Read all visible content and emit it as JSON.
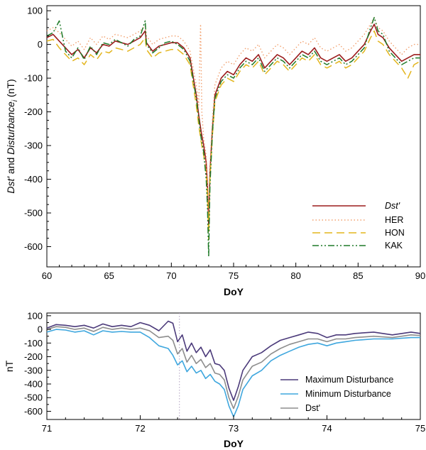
{
  "chart_data": [
    {
      "type": "line",
      "xlabel": "DoY",
      "ylabel": {
        "part1": "Dst'",
        "part2": " and ",
        "part3": "Disturbance",
        "part4": "i",
        "part5": " (nT)"
      },
      "xlim": [
        60,
        90
      ],
      "ylim": [
        -660,
        115
      ],
      "xticks": [
        "60",
        "65",
        "70",
        "75",
        "80",
        "85",
        "90"
      ],
      "yticks": [
        "100",
        "0",
        "-100",
        "-200",
        "-300",
        "-400",
        "-500",
        "-600"
      ],
      "legend_position": "bottom-right",
      "series": [
        {
          "name": "Dst'",
          "color": "#9b1c1c",
          "dash": "",
          "width": 1.6,
          "x": [
            60,
            60.5,
            61,
            61.5,
            62,
            62.5,
            63,
            63.5,
            64,
            64.5,
            65,
            65.5,
            66,
            66.5,
            67,
            67.5,
            67.9,
            68,
            68.5,
            69,
            69.5,
            70,
            70.5,
            71,
            71.5,
            72,
            72.2,
            72.4,
            72.6,
            72.8,
            72.9,
            73.0,
            73.1,
            73.3,
            73.5,
            74,
            74.5,
            75,
            75.5,
            76,
            76.5,
            77,
            77.5,
            78,
            78.5,
            79,
            79.5,
            80,
            80.5,
            81,
            81.5,
            82,
            82.5,
            83,
            83.5,
            84,
            84.5,
            85,
            85.5,
            86,
            86.3,
            86.6,
            87,
            87.5,
            88,
            88.5,
            89,
            89.5,
            90
          ],
          "y": [
            20,
            30,
            10,
            -10,
            -30,
            -15,
            -40,
            -10,
            -25,
            0,
            -5,
            10,
            5,
            0,
            10,
            20,
            40,
            5,
            -20,
            -5,
            0,
            5,
            5,
            -10,
            -40,
            -150,
            -210,
            -260,
            -300,
            -350,
            -420,
            -540,
            -380,
            -250,
            -150,
            -100,
            -80,
            -90,
            -60,
            -40,
            -50,
            -30,
            -70,
            -50,
            -30,
            -40,
            -60,
            -40,
            -20,
            -30,
            -10,
            -40,
            -50,
            -40,
            -30,
            -50,
            -40,
            -20,
            0,
            40,
            60,
            30,
            20,
            -10,
            -30,
            -50,
            -40,
            -30,
            -30
          ]
        },
        {
          "name": "HER",
          "color": "#f2a06e",
          "dash": "1.5,3",
          "width": 1.4,
          "x": [
            60,
            60.5,
            61,
            61.5,
            62,
            62.5,
            63,
            63.5,
            64,
            64.5,
            65,
            65.5,
            66,
            66.5,
            67,
            67.5,
            67.9,
            68,
            68.5,
            69,
            69.5,
            70,
            70.5,
            71,
            71.5,
            72,
            72.2,
            72.35,
            72.45,
            72.6,
            72.8,
            72.9,
            73.0,
            73.1,
            73.3,
            73.5,
            74,
            74.5,
            75,
            75.5,
            76,
            76.5,
            77,
            77.5,
            78,
            78.5,
            79,
            79.5,
            80,
            80.5,
            81,
            81.5,
            82,
            82.5,
            83,
            83.5,
            84,
            84.5,
            85,
            85.5,
            86,
            86.3,
            86.6,
            87,
            87.5,
            88,
            88.5,
            89,
            89.5,
            90
          ],
          "y": [
            40,
            50,
            35,
            15,
            -5,
            10,
            -15,
            20,
            0,
            25,
            15,
            30,
            25,
            20,
            30,
            40,
            55,
            25,
            0,
            15,
            20,
            25,
            25,
            10,
            -20,
            -120,
            -180,
            60,
            -200,
            -280,
            -330,
            -400,
            -520,
            -360,
            -220,
            -120,
            -70,
            -50,
            -60,
            -30,
            -10,
            -20,
            0,
            -40,
            -20,
            0,
            -10,
            -30,
            -10,
            10,
            0,
            20,
            -10,
            -20,
            -10,
            0,
            -20,
            -10,
            10,
            30,
            60,
            80,
            50,
            40,
            10,
            -10,
            -30,
            -10,
            0,
            0
          ]
        },
        {
          "name": "HON",
          "color": "#e3b51d",
          "dash": "11,6",
          "width": 1.5,
          "x": [
            60,
            60.5,
            61,
            61.5,
            62,
            62.5,
            63,
            63.5,
            64,
            64.5,
            65,
            65.5,
            66,
            66.5,
            67,
            67.5,
            67.9,
            68,
            68.5,
            69,
            69.5,
            70,
            70.5,
            71,
            71.5,
            72,
            72.2,
            72.4,
            72.6,
            72.8,
            72.9,
            73.0,
            73.1,
            73.3,
            73.5,
            74,
            74.5,
            75,
            75.5,
            76,
            76.5,
            77,
            77.5,
            78,
            78.5,
            79,
            79.5,
            80,
            80.5,
            81,
            81.5,
            82,
            82.5,
            83,
            83.5,
            84,
            84.5,
            85,
            85.5,
            86,
            86.3,
            86.6,
            87,
            87.5,
            88,
            88.5,
            89,
            89.5,
            90
          ],
          "y": [
            10,
            15,
            -10,
            -30,
            -50,
            -40,
            -60,
            -30,
            -45,
            -20,
            -25,
            -10,
            -15,
            -20,
            -10,
            0,
            20,
            -15,
            -40,
            -25,
            -20,
            -15,
            -15,
            -30,
            -60,
            -180,
            -240,
            -290,
            -330,
            -380,
            -450,
            -580,
            -400,
            -270,
            -170,
            -120,
            -100,
            -110,
            -80,
            -60,
            -70,
            -50,
            -90,
            -70,
            -50,
            -60,
            -80,
            -60,
            -40,
            -50,
            -30,
            -60,
            -70,
            -60,
            -50,
            -70,
            -60,
            -40,
            -20,
            20,
            40,
            10,
            0,
            -30,
            -50,
            -70,
            -100,
            -60,
            -50
          ]
        },
        {
          "name": "KAK",
          "color": "#1f7a28",
          "dash": "9,3,2,3,2,3",
          "width": 1.5,
          "x": [
            60,
            60.5,
            61,
            61.5,
            62,
            62.5,
            63,
            63.5,
            64,
            64.5,
            65,
            65.5,
            66,
            66.5,
            67,
            67.5,
            67.9,
            68,
            68.5,
            69,
            69.5,
            70,
            70.5,
            71,
            71.5,
            72,
            72.2,
            72.4,
            72.6,
            72.8,
            72.9,
            73.0,
            73.1,
            73.3,
            73.5,
            74,
            74.5,
            75,
            75.5,
            76,
            76.5,
            77,
            77.5,
            78,
            78.5,
            79,
            79.5,
            80,
            80.5,
            81,
            81.5,
            82,
            82.5,
            83,
            83.5,
            84,
            84.5,
            85,
            85.5,
            86,
            86.3,
            86.6,
            87,
            87.5,
            88,
            88.5,
            89,
            89.5,
            90
          ],
          "y": [
            25,
            35,
            70,
            -20,
            -40,
            -10,
            -45,
            -5,
            -30,
            5,
            0,
            15,
            5,
            -5,
            15,
            25,
            70,
            0,
            -25,
            -10,
            5,
            10,
            0,
            -15,
            -50,
            -160,
            -220,
            -280,
            -320,
            -400,
            -480,
            -630,
            -420,
            -260,
            -160,
            -110,
            -90,
            -100,
            -70,
            -50,
            -60,
            -40,
            -80,
            -60,
            -40,
            -50,
            -70,
            -50,
            -30,
            -40,
            -20,
            -50,
            -60,
            -50,
            -40,
            -60,
            -50,
            -30,
            -10,
            50,
            80,
            40,
            30,
            -20,
            -40,
            -60,
            -50,
            -40,
            -40
          ]
        }
      ]
    },
    {
      "type": "line",
      "xlabel": "DoY",
      "ylabel": "nT",
      "xlim": [
        71,
        75
      ],
      "ylim": [
        -660,
        120
      ],
      "xticks": [
        "71",
        "72",
        "73",
        "74",
        "75"
      ],
      "yticks": [
        "100",
        "0",
        "-100",
        "-200",
        "-300",
        "-400",
        "-500",
        "-600"
      ],
      "marker_x": 72.42,
      "legend_position": "bottom-right",
      "series": [
        {
          "name": "Maximum Disturbance",
          "color": "#4b3a7a",
          "x": [
            71,
            71.1,
            71.2,
            71.3,
            71.4,
            71.5,
            71.6,
            71.7,
            71.8,
            71.9,
            72,
            72.1,
            72.2,
            72.3,
            72.35,
            72.4,
            72.45,
            72.5,
            72.55,
            72.6,
            72.65,
            72.7,
            72.75,
            72.8,
            72.85,
            72.9,
            72.95,
            73,
            73.05,
            73.1,
            73.2,
            73.3,
            73.4,
            73.5,
            73.6,
            73.7,
            73.8,
            73.9,
            74,
            74.1,
            74.2,
            74.3,
            74.5,
            74.7,
            74.9,
            75
          ],
          "y": [
            10,
            35,
            30,
            20,
            30,
            10,
            40,
            20,
            30,
            20,
            50,
            30,
            -10,
            60,
            45,
            -90,
            -40,
            -160,
            -100,
            -170,
            -130,
            -200,
            -150,
            -250,
            -260,
            -300,
            -430,
            -520,
            -420,
            -300,
            -200,
            -170,
            -120,
            -80,
            -60,
            -40,
            -20,
            -30,
            -60,
            -40,
            -40,
            -30,
            -20,
            -40,
            -20,
            -30
          ]
        },
        {
          "name": "Minimum Disturbance",
          "color": "#3fa7de",
          "x": [
            71,
            71.1,
            71.2,
            71.3,
            71.4,
            71.5,
            71.6,
            71.7,
            71.8,
            71.9,
            72,
            72.1,
            72.2,
            72.3,
            72.35,
            72.4,
            72.45,
            72.5,
            72.55,
            72.6,
            72.65,
            72.7,
            72.75,
            72.8,
            72.85,
            72.9,
            72.95,
            73,
            73.05,
            73.1,
            73.2,
            73.3,
            73.4,
            73.5,
            73.6,
            73.7,
            73.8,
            73.9,
            74,
            74.1,
            74.2,
            74.3,
            74.5,
            74.7,
            74.9,
            75
          ],
          "y": [
            -20,
            0,
            -5,
            -20,
            -10,
            -40,
            -10,
            -20,
            -15,
            -20,
            -20,
            -60,
            -120,
            -140,
            -190,
            -260,
            -230,
            -310,
            -270,
            -320,
            -300,
            -360,
            -330,
            -380,
            -400,
            -440,
            -560,
            -640,
            -560,
            -440,
            -340,
            -300,
            -230,
            -190,
            -160,
            -130,
            -110,
            -100,
            -120,
            -100,
            -90,
            -80,
            -70,
            -70,
            -60,
            -60
          ]
        },
        {
          "name": "Dst'",
          "color": "#8d8d8d",
          "x": [
            71,
            71.1,
            71.2,
            71.3,
            71.4,
            71.5,
            71.6,
            71.7,
            71.8,
            71.9,
            72,
            72.1,
            72.2,
            72.3,
            72.35,
            72.4,
            72.45,
            72.5,
            72.55,
            72.6,
            72.65,
            72.7,
            72.75,
            72.8,
            72.85,
            72.9,
            72.95,
            73,
            73.05,
            73.1,
            73.2,
            73.3,
            73.4,
            73.5,
            73.6,
            73.7,
            73.8,
            73.9,
            74,
            74.1,
            74.2,
            74.3,
            74.5,
            74.7,
            74.9,
            75
          ],
          "y": [
            0,
            20,
            15,
            0,
            10,
            -15,
            15,
            0,
            10,
            0,
            10,
            -10,
            -60,
            -50,
            -80,
            -180,
            -140,
            -240,
            -190,
            -250,
            -220,
            -280,
            -250,
            -320,
            -330,
            -370,
            -500,
            -580,
            -490,
            -370,
            -270,
            -240,
            -180,
            -140,
            -110,
            -90,
            -70,
            -70,
            -90,
            -70,
            -70,
            -60,
            -50,
            -60,
            -40,
            -45
          ]
        }
      ]
    }
  ]
}
